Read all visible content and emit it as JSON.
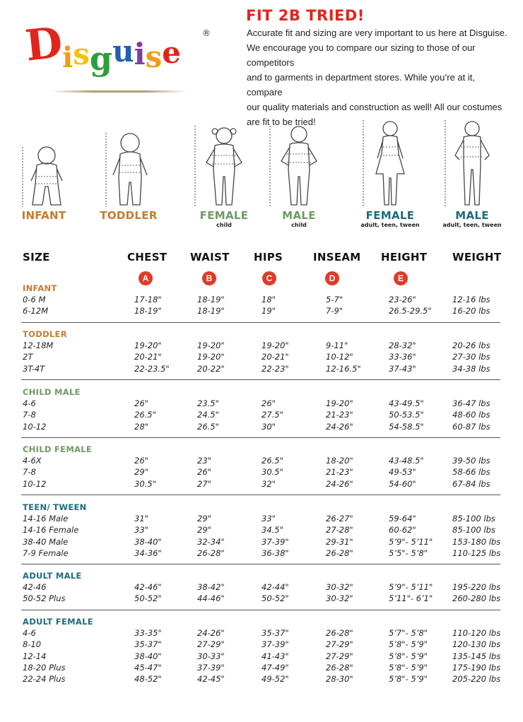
{
  "logo": {
    "letters": [
      {
        "ch": "D",
        "color": "#e1251b"
      },
      {
        "ch": "i",
        "color": "#f39c12"
      },
      {
        "ch": "s",
        "color": "#f4c20d"
      },
      {
        "ch": "g",
        "color": "#2e9e3f"
      },
      {
        "ch": "u",
        "color": "#1f5fb4"
      },
      {
        "ch": "i",
        "color": "#7b3fa0"
      },
      {
        "ch": "s",
        "color": "#f39c12"
      },
      {
        "ch": "e",
        "color": "#e1251b"
      }
    ],
    "registered": "®"
  },
  "intro": {
    "title": "FIT 2B TRIED!",
    "lines": [
      "Accurate fit and sizing are very important to us here at Disguise.",
      "We encourage you to compare our sizing to those of our competitors",
      "and to garments in department stores. While you’re at it, compare",
      "our quality materials and construction as well! All our costumes",
      "are fit to be tried!"
    ]
  },
  "figures": [
    {
      "label": "INFANT",
      "sub": "",
      "color": "#c77b2e"
    },
    {
      "label": "TODDLER",
      "sub": "",
      "color": "#c77b2e"
    },
    {
      "label": "FEMALE",
      "sub": "child",
      "color": "#6f9a63"
    },
    {
      "label": "MALE",
      "sub": "child",
      "color": "#6f9a63"
    },
    {
      "label": "FEMALE",
      "sub": "adult, teen, tween",
      "color": "#1e6b7e"
    },
    {
      "label": "MALE",
      "sub": "adult, teen, tween",
      "color": "#1e6b7e"
    }
  ],
  "table": {
    "headers": [
      "SIZE",
      "CHEST",
      "WAIST",
      "HIPS",
      "INSEAM",
      "HEIGHT",
      "WEIGHT"
    ],
    "markers": [
      "A",
      "B",
      "C",
      "D",
      "E"
    ],
    "sections": [
      {
        "title": "INFANT",
        "color": "#c77b2e",
        "rows": [
          [
            "0-6 M",
            "17-18\"",
            "18-19\"",
            "18\"",
            "5-7\"",
            "23-26\"",
            "12-16 lbs"
          ],
          [
            "6-12M",
            "18-19\"",
            "18-19\"",
            "19\"",
            "7-9\"",
            "26.5-29.5\"",
            "16-20 lbs"
          ]
        ]
      },
      {
        "title": "TODDLER",
        "color": "#c77b2e",
        "rows": [
          [
            "12-18M",
            "19-20\"",
            "19-20\"",
            "19-20\"",
            "9-11\"",
            "28-32\"",
            "20-26 lbs"
          ],
          [
            "2T",
            "20-21\"",
            "19-20\"",
            "20-21\"",
            "10-12\"",
            "33-36\"",
            "27-30 lbs"
          ],
          [
            "3T-4T",
            "22-23.5\"",
            "20-22\"",
            "22-23\"",
            "12-16.5\"",
            "37-43\"",
            "34-38 lbs"
          ]
        ]
      },
      {
        "title": "CHILD MALE",
        "color": "#6f9a63",
        "rows": [
          [
            "4-6",
            "26\"",
            "23.5\"",
            "26\"",
            "19-20\"",
            "43-49.5\"",
            "36-47 lbs"
          ],
          [
            "7-8",
            "26.5\"",
            "24.5\"",
            "27.5\"",
            "21-23\"",
            "50-53.5\"",
            "48-60 lbs"
          ],
          [
            "10-12",
            "28\"",
            "26.5\"",
            "30\"",
            "24-26\"",
            "54-58.5\"",
            "60-87 lbs"
          ]
        ]
      },
      {
        "title": "CHILD FEMALE",
        "color": "#6f9a63",
        "rows": [
          [
            "4-6X",
            "26\"",
            "23\"",
            "26.5\"",
            "18-20\"",
            "43-48.5\"",
            "39-50 lbs"
          ],
          [
            "7-8",
            "29\"",
            "26\"",
            "30.5\"",
            "21-23\"",
            "49-53\"",
            "58-66 lbs"
          ],
          [
            "10-12",
            "30.5\"",
            "27\"",
            "32\"",
            "24-26\"",
            "54-60\"",
            "67-84 lbs"
          ]
        ]
      },
      {
        "title": "TEEN/ TWEEN",
        "color": "#1e6b7e",
        "rows": [
          [
            "14-16 Male",
            "31\"",
            "29\"",
            "33\"",
            "26-27\"",
            "59-64\"",
            "85-100 lbs"
          ],
          [
            "14-16 Female",
            "33\"",
            "29\"",
            "34.5\"",
            "27-28\"",
            "60-62\"",
            "85-100 lbs"
          ],
          [
            "38-40 Male",
            "38-40\"",
            "32-34\"",
            "37-39\"",
            "29-31\"",
            "5’9\"- 5’11\"",
            "153-180 lbs"
          ],
          [
            "7-9 Female",
            "34-36\"",
            "26-28\"",
            "36-38\"",
            "26-28\"",
            "5’5\"- 5’8\"",
            "110-125 lbs"
          ]
        ]
      },
      {
        "title": "ADULT MALE",
        "color": "#1e6b7e",
        "rows": [
          [
            "42-46",
            "42-46\"",
            "38-42\"",
            "42-44\"",
            "30-32\"",
            "5’9\"- 5’11\"",
            "195-220 lbs"
          ],
          [
            "50-52 Plus",
            "50-52\"",
            "44-46\"",
            "50-52\"",
            "30-32\"",
            "5’11\"- 6’1\"",
            "260-280 lbs"
          ]
        ]
      },
      {
        "title": "ADULT FEMALE",
        "color": "#1e6b7e",
        "rows": [
          [
            "4-6",
            "33-35\"",
            "24-26\"",
            "35-37\"",
            "26-28\"",
            "5’7\"- 5’8\"",
            "110-120 lbs"
          ],
          [
            "8-10",
            "35-37\"",
            "27-29\"",
            "37-39\"",
            "27-29\"",
            "5’8\"- 5’9\"",
            "120-130 lbs"
          ],
          [
            "12-14",
            "38-40\"",
            "30-33\"",
            "41-43\"",
            "27-29\"",
            "5’8\"- 5’9\"",
            "135-145 lbs"
          ],
          [
            "18-20 Plus",
            "45-47\"",
            "37-39\"",
            "47-49\"",
            "26-28\"",
            "5’8\"- 5’9\"",
            "175-190 lbs"
          ],
          [
            "22-24 Plus",
            "48-52\"",
            "42-45\"",
            "49-52\"",
            "28-30\"",
            "5’8\"- 5’9\"",
            "205-220 lbs"
          ]
        ]
      }
    ]
  }
}
